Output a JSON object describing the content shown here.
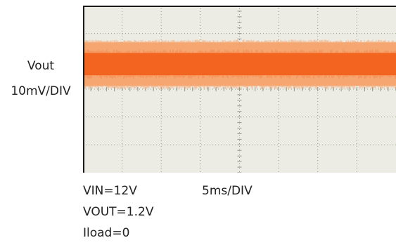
{
  "chart_data": {
    "type": "line",
    "title": "",
    "ylabel_line1": "Vout",
    "ylabel_line2": "10mV/DIV",
    "xlabel": "5ms/DIV",
    "grid": true,
    "x_divisions": 8,
    "y_divisions": 6,
    "series": [
      {
        "color": "#f2621e",
        "outer_color": "#f7a26a",
        "x_div": [
          0,
          8
        ],
        "center_div": 2.1,
        "core_halfwidth_div": 0.4,
        "envelope_halfwidth_div": 0.78
      }
    ]
  },
  "annotations": {
    "vin": "VIN=12V",
    "vout": "VOUT=1.2V",
    "iload": "Iload=0"
  },
  "colors": {
    "screen_bg": "#ecebe4",
    "grid_line": "#8e9a85",
    "frame": "#1a1a1a"
  }
}
